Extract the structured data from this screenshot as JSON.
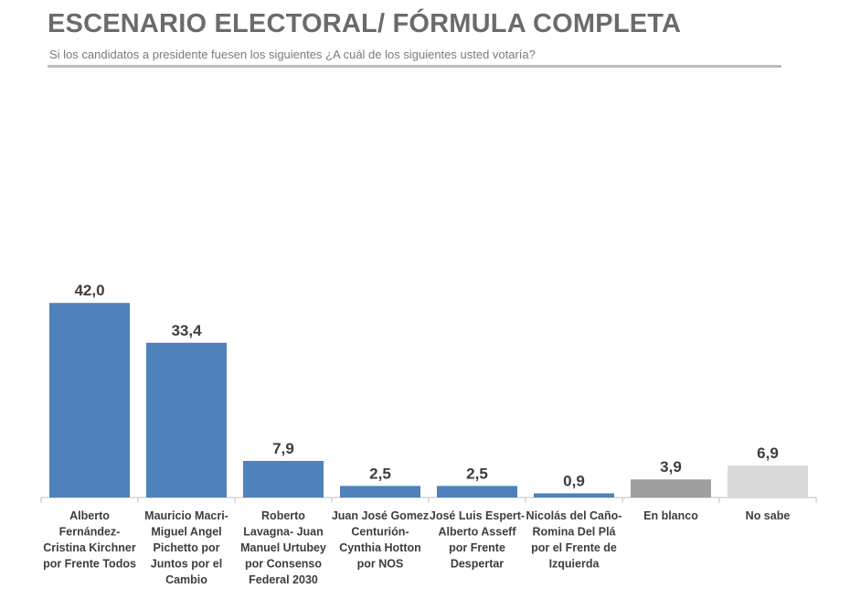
{
  "header": {
    "title": "ESCENARIO ELECTORAL/ FÓRMULA COMPLETA",
    "subtitle": "Si los candidatos a presidente fuesen los siguientes ¿A cuál de los siguientes usted votaría?"
  },
  "colors": {
    "bar_primary": "#4f81bd",
    "bar_blank": "#9e9e9e",
    "bar_unknown": "#d9d9d9",
    "title": "#6b6b6b",
    "axis": "#bfbfbf"
  },
  "chart_data": {
    "type": "bar",
    "title": "ESCENARIO ELECTORAL/ FÓRMULA COMPLETA",
    "subtitle": "Si los candidatos a presidente fuesen los siguientes ¿A cuál de los siguientes usted votaría?",
    "xlabel": "",
    "ylabel": "",
    "ylim": [
      0,
      45
    ],
    "grid": false,
    "legend": "none",
    "decimal_separator": ",",
    "categories": [
      "Alberto Fernández- Cristina Kirchner por Frente Todos",
      "Mauricio Macri- Miguel Angel Pichetto por Juntos por el Cambio",
      "Roberto Lavagna- Juan Manuel Urtubey por Consenso Federal 2030",
      "Juan José Gomez Centurión- Cynthia Hotton por NOS",
      "José Luis Espert- Alberto Asseff por Frente Despertar",
      "Nicolás del Caño- Romina Del Plá por el Frente de Izquierda",
      "En blanco",
      "No sabe"
    ],
    "category_lines": [
      [
        "Alberto",
        "Fernández-",
        "Cristina Kirchner",
        "por Frente Todos"
      ],
      [
        "Mauricio Macri-",
        "Miguel Angel",
        "Pichetto por",
        "Juntos por el",
        "Cambio"
      ],
      [
        "Roberto",
        "Lavagna- Juan",
        "Manuel Urtubey",
        "por Consenso",
        "Federal 2030"
      ],
      [
        "Juan José Gomez",
        "Centurión-",
        "Cynthia Hotton",
        "por NOS"
      ],
      [
        "José Luis Espert-",
        "Alberto Asseff",
        "por Frente",
        "Despertar"
      ],
      [
        "Nicolás del Caño-",
        "Romina Del Plá",
        "por el Frente de",
        "Izquierda"
      ],
      [
        "En blanco"
      ],
      [
        "No sabe"
      ]
    ],
    "values": [
      42.0,
      33.4,
      7.9,
      2.5,
      2.5,
      0.9,
      3.9,
      6.9
    ],
    "value_labels": [
      "42,0",
      "33,4",
      "7,9",
      "2,5",
      "2,5",
      "0,9",
      "3,9",
      "6,9"
    ],
    "bar_colors": [
      "#4f81bd",
      "#4f81bd",
      "#4f81bd",
      "#4f81bd",
      "#4f81bd",
      "#4f81bd",
      "#9e9e9e",
      "#d9d9d9"
    ]
  }
}
